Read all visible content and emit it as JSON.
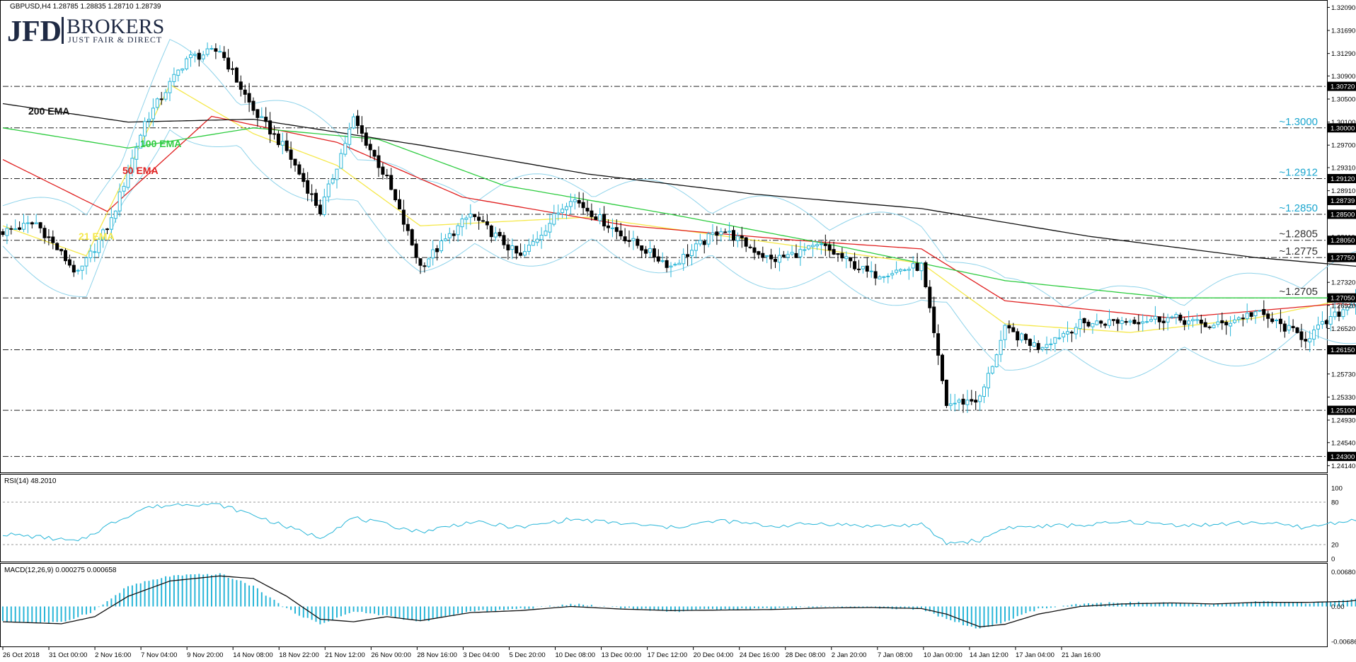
{
  "symbol_header": "GBPUSD,H4  1.28785 1.28835 1.28710 1.28739",
  "logo": {
    "main": "JFD",
    "brand": "BROKERS",
    "tagline": "JUST FAIR & DIRECT"
  },
  "colors": {
    "bull": "#29b6d8",
    "bear": "#000000",
    "ema21": "#f5e84a",
    "ema50": "#e02020",
    "ema100": "#2ecc40",
    "ema200": "#111111",
    "bollinger": "#8fd3ea",
    "trend": "#1ba6cf",
    "rsi": "#29b6d8",
    "macd_hist": "#29b6d8",
    "macd_signal": "#111111"
  },
  "rsi_label": "RSI(14) 48.2010",
  "macd_label": "MACD(12,26,9) 0.000275 0.000658",
  "chart_data": [
    {
      "type": "candlestick",
      "title": "GBPUSD,H4",
      "ylim": [
        1.2412,
        1.3212
      ],
      "y_ticks": [
        "1.32090",
        "1.31690",
        "1.31290",
        "1.30900",
        "1.30500",
        "1.30100",
        "1.29700",
        "1.29310",
        "1.28910",
        "1.28510",
        "1.28110",
        "1.27720",
        "1.27320",
        "1.26920",
        "1.26520",
        "1.26130",
        "1.25730",
        "1.25330",
        "1.24930",
        "1.24540",
        "1.24140"
      ],
      "price_tags": [
        "1.30720",
        "1.30000",
        "1.29120",
        "1.28739",
        "1.28500",
        "1.28050",
        "1.27750",
        "1.27050",
        "1.26150",
        "1.25100",
        "1.24300"
      ],
      "x_labels": [
        "26 Oct 2018",
        "31 Oct 00:00",
        "2 Nov 16:00",
        "7 Nov 04:00",
        "9 Nov 20:00",
        "14 Nov 08:00",
        "18 Nov 22:00",
        "21 Nov 12:00",
        "26 Nov 00:00",
        "28 Nov 16:00",
        "3 Dec 04:00",
        "5 Dec 20:00",
        "10 Dec 08:00",
        "13 Dec 00:00",
        "17 Dec 12:00",
        "20 Dec 04:00",
        "24 Dec 16:00",
        "28 Dec 08:00",
        "2 Jan 20:00",
        "7 Jan 08:00",
        "10 Jan 00:00",
        "14 Jan 12:00",
        "17 Jan 04:00",
        "21 Jan 16:00"
      ],
      "horizontal_levels": [
        {
          "value": 1.3072,
          "label": ""
        },
        {
          "value": 1.3,
          "label": "~1.3000",
          "color": "#1ba6cf"
        },
        {
          "value": 1.2912,
          "label": "~1.2912",
          "color": "#1ba6cf"
        },
        {
          "value": 1.285,
          "label": "~1.2850",
          "color": "#1ba6cf"
        },
        {
          "value": 1.2805,
          "label": "~1.2805",
          "color": "#333333"
        },
        {
          "value": 1.2775,
          "label": "~1.2775",
          "color": "#333333"
        },
        {
          "value": 1.2705,
          "label": "~1.2705",
          "color": "#333333"
        },
        {
          "value": 1.2615,
          "label": ""
        },
        {
          "value": 1.251,
          "label": ""
        },
        {
          "value": 1.243,
          "label": ""
        }
      ],
      "indicator_labels": [
        {
          "text": "200 EMA",
          "color": "#111111"
        },
        {
          "text": "100 EMA",
          "color": "#2ecc40"
        },
        {
          "text": "50 EMA",
          "color": "#e02020"
        },
        {
          "text": "21 EMA",
          "color": "#f5e84a"
        }
      ],
      "close_anchors": [
        [
          0,
          1.282
        ],
        [
          8,
          1.2835
        ],
        [
          18,
          1.2745
        ],
        [
          26,
          1.284
        ],
        [
          34,
          1.301
        ],
        [
          44,
          1.312
        ],
        [
          52,
          1.3135
        ],
        [
          60,
          1.303
        ],
        [
          68,
          1.296
        ],
        [
          76,
          1.2855
        ],
        [
          84,
          1.3015
        ],
        [
          92,
          1.291
        ],
        [
          100,
          1.276
        ],
        [
          112,
          1.285
        ],
        [
          124,
          1.2775
        ],
        [
          136,
          1.288
        ],
        [
          148,
          1.2815
        ],
        [
          160,
          1.276
        ],
        [
          172,
          1.2825
        ],
        [
          184,
          1.277
        ],
        [
          196,
          1.2795
        ],
        [
          208,
          1.2745
        ],
        [
          220,
          1.276
        ],
        [
          226,
          1.252
        ],
        [
          234,
          1.253
        ],
        [
          240,
          1.265
        ],
        [
          248,
          1.262
        ],
        [
          258,
          1.266
        ],
        [
          268,
          1.2665
        ],
        [
          280,
          1.267
        ],
        [
          290,
          1.2655
        ],
        [
          300,
          1.268
        ],
        [
          312,
          1.2635
        ],
        [
          322,
          1.269
        ],
        [
          330,
          1.2765
        ],
        [
          336,
          1.269
        ],
        [
          340,
          1.2535
        ],
        [
          348,
          1.264
        ],
        [
          356,
          1.2735
        ],
        [
          366,
          1.277
        ],
        [
          374,
          1.2745
        ],
        [
          384,
          1.2775
        ],
        [
          394,
          1.284
        ],
        [
          404,
          1.2875
        ],
        [
          414,
          1.283
        ],
        [
          420,
          1.285
        ],
        [
          428,
          1.298
        ],
        [
          434,
          1.289
        ],
        [
          440,
          1.2855
        ],
        [
          444,
          1.2874
        ]
      ],
      "ema_anchors": {
        "ema21": [
          [
            0,
            1.283
          ],
          [
            20,
            1.2778
          ],
          [
            40,
            1.3075
          ],
          [
            60,
            1.299
          ],
          [
            80,
            1.2935
          ],
          [
            100,
            1.283
          ],
          [
            140,
            1.2845
          ],
          [
            180,
            1.2805
          ],
          [
            220,
            1.2765
          ],
          [
            240,
            1.266
          ],
          [
            270,
            1.2645
          ],
          [
            300,
            1.267
          ],
          [
            330,
            1.2715
          ],
          [
            345,
            1.266
          ],
          [
            370,
            1.276
          ],
          [
            400,
            1.284
          ],
          [
            430,
            1.2895
          ],
          [
            444,
            1.2885
          ]
        ],
        "ema50": [
          [
            0,
            1.2945
          ],
          [
            25,
            1.2855
          ],
          [
            50,
            1.302
          ],
          [
            80,
            1.2975
          ],
          [
            110,
            1.288
          ],
          [
            150,
            1.283
          ],
          [
            190,
            1.2805
          ],
          [
            220,
            1.279
          ],
          [
            240,
            1.27
          ],
          [
            280,
            1.267
          ],
          [
            320,
            1.2695
          ],
          [
            345,
            1.268
          ],
          [
            380,
            1.274
          ],
          [
            420,
            1.2815
          ],
          [
            444,
            1.2855
          ]
        ],
        "ema100": [
          [
            0,
            1.3
          ],
          [
            30,
            1.2965
          ],
          [
            60,
            1.3
          ],
          [
            90,
            1.298
          ],
          [
            120,
            1.29
          ],
          [
            160,
            1.285
          ],
          [
            200,
            1.2795
          ],
          [
            240,
            1.2735
          ],
          [
            280,
            1.2705
          ],
          [
            320,
            1.2705
          ],
          [
            350,
            1.2695
          ],
          [
            390,
            1.273
          ],
          [
            420,
            1.277
          ],
          [
            444,
            1.2803
          ]
        ],
        "ema200": [
          [
            0,
            1.3042
          ],
          [
            30,
            1.301
          ],
          [
            60,
            1.3015
          ],
          [
            100,
            1.297
          ],
          [
            140,
            1.292
          ],
          [
            180,
            1.2885
          ],
          [
            220,
            1.286
          ],
          [
            260,
            1.2812
          ],
          [
            300,
            1.2775
          ],
          [
            340,
            1.275
          ],
          [
            360,
            1.2725
          ],
          [
            390,
            1.273
          ],
          [
            420,
            1.2745
          ],
          [
            444,
            1.2778
          ]
        ]
      },
      "trendline": {
        "from": [
          345,
          1.243
        ],
        "to": [
          480,
          1.2955
        ]
      },
      "projection_up": [
        [
          444,
          1.286
        ],
        [
          446,
          1.2825
        ],
        [
          450,
          1.2815
        ],
        [
          454,
          1.283
        ],
        [
          458,
          1.288
        ],
        [
          462,
          1.296
        ],
        [
          466,
          1.299
        ]
      ],
      "projection_down": [
        [
          446,
          1.281
        ],
        [
          450,
          1.279
        ],
        [
          454,
          1.2785
        ],
        [
          458,
          1.28
        ],
        [
          462,
          1.2795
        ],
        [
          466,
          1.276
        ],
        [
          470,
          1.271
        ]
      ]
    },
    {
      "type": "line",
      "title": "RSI(14) 48.2010",
      "ylim": [
        0,
        100
      ],
      "y_ticks": [
        "100",
        "80",
        "20",
        "0"
      ],
      "reference_lines": [
        80,
        20
      ],
      "anchors": [
        [
          0,
          35
        ],
        [
          10,
          30
        ],
        [
          18,
          24
        ],
        [
          26,
          50
        ],
        [
          34,
          72
        ],
        [
          44,
          78
        ],
        [
          52,
          76
        ],
        [
          60,
          62
        ],
        [
          68,
          45
        ],
        [
          76,
          30
        ],
        [
          84,
          58
        ],
        [
          92,
          48
        ],
        [
          100,
          38
        ],
        [
          112,
          52
        ],
        [
          124,
          44
        ],
        [
          136,
          56
        ],
        [
          148,
          50
        ],
        [
          160,
          44
        ],
        [
          172,
          54
        ],
        [
          184,
          46
        ],
        [
          196,
          50
        ],
        [
          208,
          46
        ],
        [
          220,
          48
        ],
        [
          226,
          22
        ],
        [
          234,
          26
        ],
        [
          240,
          44
        ],
        [
          250,
          46
        ],
        [
          260,
          48
        ],
        [
          270,
          52
        ],
        [
          280,
          48
        ],
        [
          290,
          48
        ],
        [
          300,
          52
        ],
        [
          312,
          44
        ],
        [
          322,
          54
        ],
        [
          330,
          62
        ],
        [
          336,
          54
        ],
        [
          340,
          26
        ],
        [
          348,
          48
        ],
        [
          356,
          58
        ],
        [
          366,
          54
        ],
        [
          374,
          50
        ],
        [
          384,
          56
        ],
        [
          394,
          62
        ],
        [
          404,
          56
        ],
        [
          414,
          54
        ],
        [
          420,
          60
        ],
        [
          428,
          68
        ],
        [
          434,
          56
        ],
        [
          440,
          50
        ],
        [
          444,
          48
        ]
      ]
    },
    {
      "type": "bar",
      "title": "MACD(12,26,9) 0.000275 0.000658",
      "ylim": [
        -0.0073,
        0.0073
      ],
      "y_ticks": [
        "0.006802",
        "0.00",
        "-0.006863"
      ],
      "hist_anchors": [
        [
          0,
          -0.003
        ],
        [
          14,
          -0.0032
        ],
        [
          22,
          -0.0008
        ],
        [
          30,
          0.004
        ],
        [
          40,
          0.006
        ],
        [
          52,
          0.0064
        ],
        [
          60,
          0.004
        ],
        [
          68,
          -0.0005
        ],
        [
          76,
          -0.0035
        ],
        [
          84,
          -0.001
        ],
        [
          92,
          -0.0018
        ],
        [
          100,
          -0.003
        ],
        [
          112,
          -0.001
        ],
        [
          124,
          -0.0005
        ],
        [
          136,
          0.0005
        ],
        [
          148,
          -0.0002
        ],
        [
          160,
          -0.001
        ],
        [
          172,
          -0.0005
        ],
        [
          184,
          -0.0004
        ],
        [
          196,
          0.0
        ],
        [
          208,
          -0.0002
        ],
        [
          220,
          -0.0005
        ],
        [
          226,
          -0.0025
        ],
        [
          234,
          -0.0045
        ],
        [
          240,
          -0.003
        ],
        [
          248,
          -0.0005
        ],
        [
          258,
          0.0004
        ],
        [
          268,
          0.0008
        ],
        [
          280,
          0.0006
        ],
        [
          290,
          0.0004
        ],
        [
          300,
          0.001
        ],
        [
          312,
          0.0006
        ],
        [
          322,
          0.0012
        ],
        [
          330,
          0.0025
        ],
        [
          336,
          0.0018
        ],
        [
          340,
          -0.001
        ],
        [
          348,
          -0.0018
        ],
        [
          356,
          0.0012
        ],
        [
          366,
          0.0032
        ],
        [
          374,
          0.0028
        ],
        [
          384,
          0.0022
        ],
        [
          394,
          0.003
        ],
        [
          404,
          0.0038
        ],
        [
          414,
          0.0026
        ],
        [
          420,
          0.003
        ],
        [
          428,
          0.004
        ],
        [
          434,
          0.003
        ],
        [
          440,
          0.0015
        ],
        [
          444,
          0.0007
        ]
      ],
      "signal_anchors": [
        [
          0,
          -0.003
        ],
        [
          14,
          -0.0034
        ],
        [
          22,
          -0.002
        ],
        [
          30,
          0.002
        ],
        [
          40,
          0.005
        ],
        [
          52,
          0.006
        ],
        [
          60,
          0.0055
        ],
        [
          68,
          0.002
        ],
        [
          76,
          -0.0025
        ],
        [
          84,
          -0.003
        ],
        [
          92,
          -0.002
        ],
        [
          100,
          -0.0028
        ],
        [
          112,
          -0.0012
        ],
        [
          124,
          -0.0008
        ],
        [
          136,
          0.0
        ],
        [
          148,
          -0.0005
        ],
        [
          160,
          -0.0008
        ],
        [
          172,
          -0.0007
        ],
        [
          184,
          -0.0006
        ],
        [
          196,
          -0.0003
        ],
        [
          208,
          -0.0002
        ],
        [
          220,
          -0.0004
        ],
        [
          226,
          -0.0015
        ],
        [
          234,
          -0.004
        ],
        [
          240,
          -0.0035
        ],
        [
          248,
          -0.0015
        ],
        [
          258,
          0.0
        ],
        [
          268,
          0.0005
        ],
        [
          280,
          0.0007
        ],
        [
          290,
          0.0005
        ],
        [
          300,
          0.0008
        ],
        [
          312,
          0.0008
        ],
        [
          322,
          0.001
        ],
        [
          330,
          0.0018
        ],
        [
          336,
          0.002
        ],
        [
          340,
          0.0005
        ],
        [
          348,
          -0.0012
        ],
        [
          356,
          -0.0002
        ],
        [
          366,
          0.002
        ],
        [
          374,
          0.0026
        ],
        [
          384,
          0.0022
        ],
        [
          394,
          0.0025
        ],
        [
          404,
          0.0032
        ],
        [
          414,
          0.003
        ],
        [
          420,
          0.0028
        ],
        [
          428,
          0.0035
        ],
        [
          434,
          0.0033
        ],
        [
          440,
          0.0022
        ],
        [
          444,
          0.0014
        ]
      ]
    }
  ]
}
